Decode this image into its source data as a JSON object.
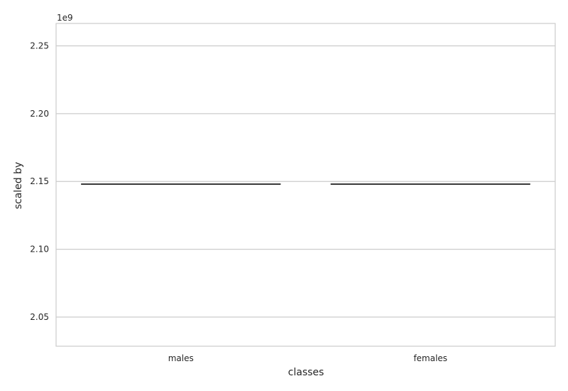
{
  "chart_data": {
    "type": "box",
    "title": "",
    "xlabel": "classes",
    "ylabel": "scaled by",
    "y_offset_label": "1e9",
    "categories": [
      "males",
      "females"
    ],
    "series": [
      {
        "category": "males",
        "median": 2.148,
        "q1": 2.148,
        "q3": 2.148,
        "whisker_low": 2.148,
        "whisker_high": 2.148
      },
      {
        "category": "females",
        "median": 2.148,
        "q1": 2.148,
        "q3": 2.148,
        "whisker_low": 2.148,
        "whisker_high": 2.148
      }
    ],
    "y_ticks": [
      2.05,
      2.1,
      2.15,
      2.2,
      2.25
    ],
    "y_tick_labels": [
      "2.05",
      "2.10",
      "2.15",
      "2.20",
      "2.25"
    ],
    "ylim": [
      2.0285,
      2.2665
    ],
    "grid": "horizontal",
    "colors": {
      "grid": "#cccccc",
      "frame": "#cccccc",
      "box_line": "#3a3a3a",
      "text": "#262626"
    }
  }
}
